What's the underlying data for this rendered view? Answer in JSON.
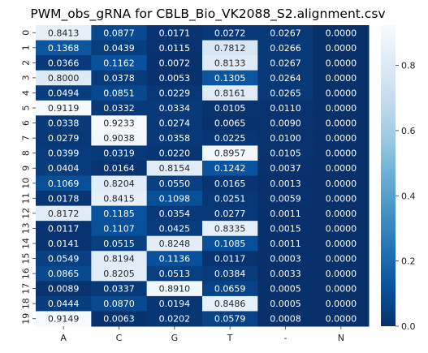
{
  "chart_data": {
    "type": "heatmap",
    "title": "PWM_obs_gRNA for CBLB_Bio_VK2088_S2.alignment.csv",
    "columns": [
      "A",
      "C",
      "G",
      "T",
      "-",
      "N"
    ],
    "rows": [
      "0",
      "1",
      "2",
      "3",
      "4",
      "5",
      "6",
      "7",
      "8",
      "9",
      "10",
      "11",
      "12",
      "13",
      "14",
      "15",
      "16",
      "17",
      "18",
      "19"
    ],
    "values": [
      [
        0.8413,
        0.0877,
        0.0171,
        0.0272,
        0.0267,
        0.0
      ],
      [
        0.1368,
        0.0439,
        0.0115,
        0.7812,
        0.0266,
        0.0
      ],
      [
        0.0366,
        0.1162,
        0.0072,
        0.8133,
        0.0267,
        0.0
      ],
      [
        0.8,
        0.0378,
        0.0053,
        0.1305,
        0.0264,
        0.0
      ],
      [
        0.0494,
        0.0851,
        0.0229,
        0.8161,
        0.0265,
        0.0
      ],
      [
        0.9119,
        0.0332,
        0.0334,
        0.0105,
        0.011,
        0.0
      ],
      [
        0.0338,
        0.9233,
        0.0274,
        0.0065,
        0.009,
        0.0
      ],
      [
        0.0279,
        0.9038,
        0.0358,
        0.0225,
        0.01,
        0.0
      ],
      [
        0.0399,
        0.0319,
        0.022,
        0.8957,
        0.0105,
        0.0
      ],
      [
        0.0404,
        0.0164,
        0.8154,
        0.1242,
        0.0037,
        0.0
      ],
      [
        0.1069,
        0.8204,
        0.055,
        0.0165,
        0.0013,
        0.0
      ],
      [
        0.0178,
        0.8415,
        0.1098,
        0.0251,
        0.0059,
        0.0
      ],
      [
        0.8172,
        0.1185,
        0.0354,
        0.0277,
        0.0011,
        0.0
      ],
      [
        0.0117,
        0.1107,
        0.0425,
        0.8335,
        0.0015,
        0.0
      ],
      [
        0.0141,
        0.0515,
        0.8248,
        0.1085,
        0.0011,
        0.0
      ],
      [
        0.0549,
        0.8194,
        0.1136,
        0.0117,
        0.0003,
        0.0
      ],
      [
        0.0865,
        0.8205,
        0.0513,
        0.0384,
        0.0033,
        0.0
      ],
      [
        0.0089,
        0.0337,
        0.891,
        0.0659,
        0.0005,
        0.0
      ],
      [
        0.0444,
        0.087,
        0.0194,
        0.8486,
        0.0005,
        0.0
      ],
      [
        0.9149,
        0.0063,
        0.0202,
        0.0579,
        0.0008,
        0.0
      ]
    ],
    "colorbar": {
      "ticks": [
        "0.0",
        "0.2",
        "0.4",
        "0.6",
        "0.8"
      ],
      "range": [
        0.0,
        0.9233
      ]
    },
    "colormap": [
      "#08306b",
      "#08519c",
      "#2171b5",
      "#4292c6",
      "#6baed6",
      "#9ecae1",
      "#c6dbef",
      "#deebf7",
      "#f7fbff"
    ]
  }
}
